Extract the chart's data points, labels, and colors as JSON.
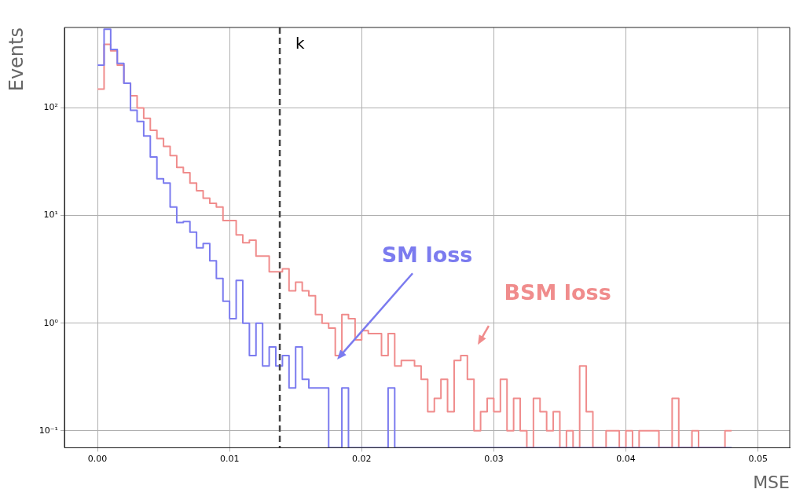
{
  "chart_data": {
    "type": "histogram",
    "xlabel": "MSE",
    "ylabel": "Events",
    "bins": [
      0,
      0.0005,
      0.001,
      0.0015,
      0.002,
      0.0025,
      0.003,
      0.0035,
      0.004,
      0.0045,
      0.005,
      0.0055,
      0.006,
      0.0065,
      0.007,
      0.0075,
      0.008,
      0.0085,
      0.009,
      0.0095,
      0.01,
      0.0105,
      0.011,
      0.0115,
      0.012,
      0.0125,
      0.013,
      0.0135,
      0.014,
      0.0145,
      0.015,
      0.0155,
      0.016,
      0.0165,
      0.017,
      0.0175,
      0.018,
      0.0185,
      0.019,
      0.0195,
      0.02,
      0.0205,
      0.021,
      0.0215,
      0.022,
      0.0225,
      0.023,
      0.0235,
      0.024,
      0.0245,
      0.025,
      0.0255,
      0.026,
      0.0265,
      0.027,
      0.0275,
      0.028,
      0.0285,
      0.029,
      0.0295,
      0.03,
      0.0305,
      0.031,
      0.0315,
      0.032,
      0.0325,
      0.033,
      0.0335,
      0.034,
      0.0345,
      0.035,
      0.0355,
      0.036,
      0.0365,
      0.037,
      0.0375,
      0.038,
      0.0385,
      0.039,
      0.0395,
      0.04,
      0.0405,
      0.041,
      0.0415,
      0.042,
      0.0425,
      0.043,
      0.0435,
      0.044,
      0.0445,
      0.045,
      0.0455,
      0.046,
      0.0465,
      0.047,
      0.0475,
      0.048
    ],
    "series": [
      {
        "name": "SM loss",
        "color": "#7b7bef",
        "values": [
          250,
          540,
          350,
          260,
          170,
          95,
          75,
          55,
          35,
          22,
          20,
          12,
          8.6,
          8.8,
          7,
          5,
          5.5,
          3.8,
          2.6,
          1.6,
          1.1,
          2.5,
          1.0,
          0.5,
          1.0,
          0.4,
          0.6,
          0.4,
          0.5,
          0.25,
          0.6,
          0.3,
          0.25,
          0.25,
          0.25,
          null,
          null,
          0.25,
          null,
          null,
          null,
          null,
          null,
          null,
          0.25,
          null,
          null,
          null,
          null,
          null,
          null,
          null,
          null,
          null,
          null,
          null,
          null,
          null,
          null,
          null,
          null,
          null,
          null,
          null,
          null,
          null,
          null,
          null,
          null,
          null,
          null,
          null,
          null,
          null,
          null,
          null,
          null,
          null,
          null,
          null,
          null,
          null,
          null,
          null,
          null,
          null,
          null,
          null,
          null,
          null,
          null,
          null,
          null,
          null,
          null,
          null
        ]
      },
      {
        "name": "BSM loss",
        "color": "#f08c8c",
        "values": [
          150,
          390,
          340,
          250,
          170,
          130,
          100,
          80,
          62,
          52,
          44,
          36,
          28,
          25,
          20,
          17,
          14.5,
          13,
          12,
          9,
          9,
          6.6,
          5.6,
          5.9,
          4.2,
          4.2,
          3.0,
          3.0,
          3.2,
          2.0,
          2.4,
          2.0,
          1.8,
          1.2,
          1.0,
          0.9,
          0.5,
          1.2,
          1.1,
          0.7,
          0.85,
          0.8,
          0.8,
          0.5,
          0.8,
          0.4,
          0.45,
          0.45,
          0.4,
          0.3,
          0.15,
          0.2,
          0.3,
          0.15,
          0.45,
          0.5,
          0.3,
          0.1,
          0.15,
          0.2,
          0.15,
          0.3,
          0.1,
          0.2,
          0.1,
          null,
          0.2,
          0.15,
          0.1,
          0.15,
          null,
          0.1,
          null,
          0.4,
          0.15,
          null,
          null,
          0.1,
          0.1,
          null,
          0.1,
          null,
          0.1,
          0.1,
          0.1,
          null,
          null,
          0.2,
          null,
          null,
          0.1,
          null,
          null,
          null,
          null,
          0.1
        ]
      }
    ],
    "xlim": [
      -0.0025,
      0.0524
    ],
    "xticks": [
      {
        "value": 0,
        "label": "0.00"
      },
      0.01,
      0.02,
      0.03,
      0.04,
      0.05
    ],
    "ylim": [
      0.0695,
      560
    ],
    "yticks": [
      {
        "value": 0.1,
        "label": "10⁻¹"
      },
      {
        "value": 1,
        "label": "10⁰"
      },
      {
        "value": 10,
        "label": "10¹"
      },
      {
        "value": 100,
        "label": "10²"
      }
    ],
    "log": "y",
    "grid": true,
    "ref_lines": [
      {
        "axis": "x",
        "value": 0.0138,
        "label": "k",
        "color": "#444444",
        "line_style": "dashed"
      }
    ]
  }
}
